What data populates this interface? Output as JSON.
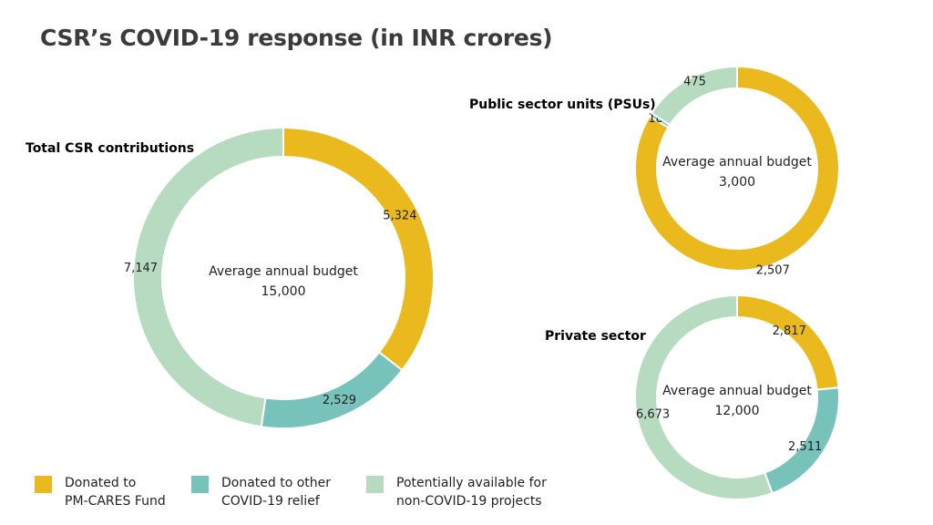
{
  "title": "CSR’s COVID-19 response (in INR crores)",
  "colors": {
    "pm_cares": "#EAB91D",
    "covid_relief": "#77C3BB",
    "non_covid": "#B7DBC0"
  },
  "chart_data": [
    {
      "type": "pie",
      "subtitle": "Total CSR contributions",
      "center_label": "Average annual budget",
      "center_value": "15,000",
      "slices": [
        {
          "category": "pm_cares",
          "value": 5324,
          "label": "5,324"
        },
        {
          "category": "covid_relief",
          "value": 2529,
          "label": "2,529"
        },
        {
          "category": "non_covid",
          "value": 7147,
          "label": "7,147"
        }
      ]
    },
    {
      "type": "pie",
      "subtitle": "Public sector units (PSUs)",
      "center_label": "Average annual budget",
      "center_value": "3,000",
      "slices": [
        {
          "category": "pm_cares",
          "value": 2507,
          "label": "2,507"
        },
        {
          "category": "covid_relief",
          "value": 18,
          "label": "18"
        },
        {
          "category": "non_covid",
          "value": 475,
          "label": "475"
        }
      ]
    },
    {
      "type": "pie",
      "subtitle": "Private sector",
      "center_label": "Average annual budget",
      "center_value": "12,000",
      "slices": [
        {
          "category": "pm_cares",
          "value": 2817,
          "label": "2,817"
        },
        {
          "category": "covid_relief",
          "value": 2511,
          "label": "2,511"
        },
        {
          "category": "non_covid",
          "value": 6673,
          "label": "6,673"
        }
      ]
    }
  ],
  "legend": [
    {
      "category": "pm_cares",
      "label": "Donated to\nPM-CARES Fund"
    },
    {
      "category": "covid_relief",
      "label": "Donated to other\nCOVID-19 relief"
    },
    {
      "category": "non_covid",
      "label": "Potentially available for\nnon-COVID-19 projects"
    }
  ]
}
